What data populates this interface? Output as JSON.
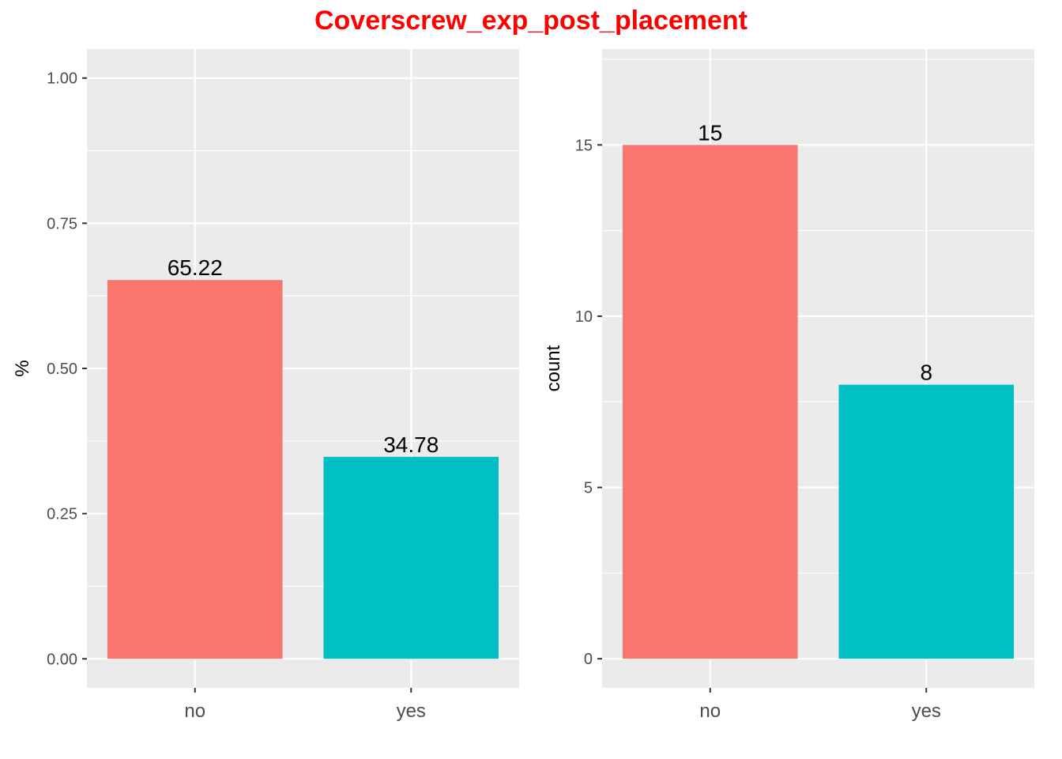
{
  "title": "Coverscrew_exp_post_placement",
  "colors": {
    "title": "#ff0000",
    "no": "#f8766d",
    "yes": "#00bfc4",
    "panel_bg": "#ebebeb",
    "grid": "#ffffff"
  },
  "chart_data": [
    {
      "type": "bar",
      "categories": [
        "no",
        "yes"
      ],
      "values": [
        0.6522,
        0.3478
      ],
      "data_labels": [
        "65.22",
        "34.78"
      ],
      "y_ticks": [
        0,
        0.25,
        0.5,
        0.75,
        1.0
      ],
      "y_tick_labels": [
        "0.00",
        "0.25",
        "0.50",
        "0.75",
        "1.00"
      ],
      "ylim": [
        -0.05,
        1.05
      ],
      "xlabel": "",
      "ylabel": "%",
      "grid": true,
      "legend": "none"
    },
    {
      "type": "bar",
      "categories": [
        "no",
        "yes"
      ],
      "values": [
        15,
        8
      ],
      "data_labels": [
        "15",
        "8"
      ],
      "y_ticks": [
        0,
        5,
        10,
        15
      ],
      "y_tick_labels": [
        "0",
        "5",
        "10",
        "15"
      ],
      "ylim": [
        -0.85,
        17.8
      ],
      "xlabel": "",
      "ylabel": "count",
      "grid": true,
      "legend": "none"
    }
  ]
}
